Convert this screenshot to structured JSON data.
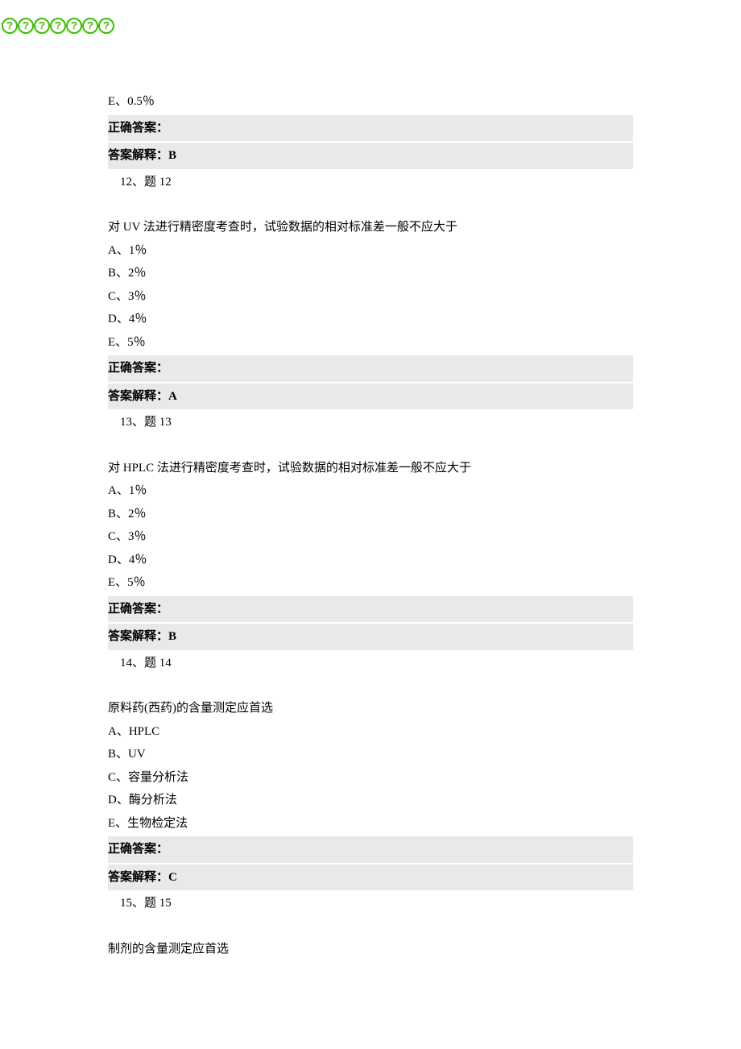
{
  "watermark": [
    "?",
    "?",
    "?",
    "?",
    "?",
    "?",
    "?"
  ],
  "q11": {
    "optE": "E、0.5％",
    "correct_label": "正确答案：",
    "explain_label": "答案解释：",
    "explain_val": "B"
  },
  "q12": {
    "num": " 12、题 12",
    "stem": "对 UV 法进行精密度考查时，试验数据的相对标准差一般不应大于",
    "optA": "A、1％",
    "optB": "B、2％",
    "optC": "C、3％",
    "optD": "D、4％",
    "optE": "E、5％",
    "correct_label": "正确答案：",
    "explain_label": "答案解释：",
    "explain_val": "A"
  },
  "q13": {
    "num": " 13、题 13",
    "stem": "对 HPLC 法进行精密度考查时，试验数据的相对标准差一般不应大于",
    "optA": "A、1％",
    "optB": "B、2％",
    "optC": "C、3％",
    "optD": "D、4％",
    "optE": "E、5％",
    "correct_label": "正确答案：",
    "explain_label": "答案解释：",
    "explain_val": "B"
  },
  "q14": {
    "num": " 14、题 14",
    "stem": "原料药(西药)的含量测定应首选",
    "optA": "A、HPLC",
    "optB": "B、UV",
    "optC": "C、容量分析法",
    "optD": "D、酶分析法",
    "optE": "E、生物检定法",
    "correct_label": "正确答案：",
    "explain_label": "答案解释：",
    "explain_val": "C"
  },
  "q15": {
    "num": " 15、题 15",
    "stem": "制剂的含量测定应首选"
  }
}
